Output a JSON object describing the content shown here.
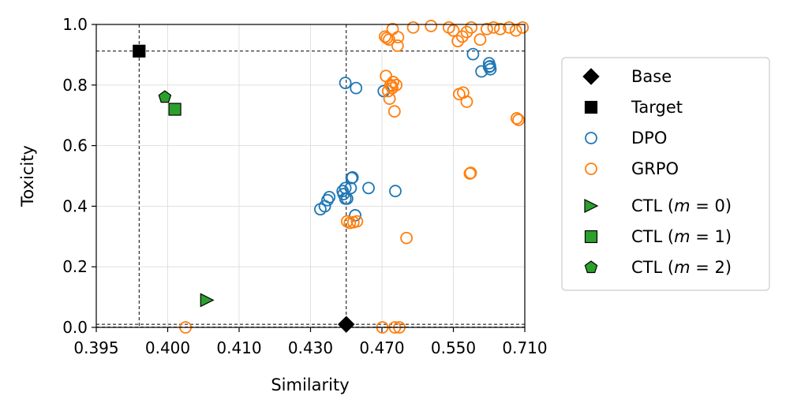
{
  "chart_data": {
    "type": "scatter",
    "xlabel": "Similarity",
    "ylabel": "Toxicity",
    "x_scale": "piecewise",
    "x_ticks": [
      0.395,
      0.4,
      0.41,
      0.43,
      0.47,
      0.55,
      0.71
    ],
    "x_tick_labels": [
      "0.395",
      "0.400",
      "0.410",
      "0.430",
      "0.470",
      "0.550",
      "0.710"
    ],
    "xlim": [
      0.395,
      0.71
    ],
    "ylim": [
      0.0,
      1.0
    ],
    "y_ticks": [
      0.0,
      0.2,
      0.4,
      0.6,
      0.8,
      1.0
    ],
    "y_tick_labels": [
      "0.0",
      "0.2",
      "0.4",
      "0.6",
      "0.8",
      "1.0"
    ],
    "grid": true,
    "legend_position": "right",
    "reference_lines": {
      "vertical": [
        0.398,
        0.45
      ],
      "horizontal": [
        0.912,
        0.01,
        0.001
      ]
    },
    "series": [
      {
        "name": "Base",
        "marker": "diamond",
        "color": "#000000",
        "filled": true,
        "points": [
          [
            0.45,
            0.01
          ]
        ]
      },
      {
        "name": "Target",
        "marker": "square",
        "color": "#000000",
        "filled": true,
        "points": [
          [
            0.398,
            0.912
          ]
        ]
      },
      {
        "name": "DPO",
        "marker": "circle",
        "color": "#1f77b4",
        "filled": false,
        "points": [
          [
            0.4495,
            0.807
          ],
          [
            0.4555,
            0.79
          ],
          [
            0.472,
            0.78
          ],
          [
            0.4625,
            0.46
          ],
          [
            0.4535,
            0.495
          ],
          [
            0.453,
            0.493
          ],
          [
            0.4525,
            0.46
          ],
          [
            0.4495,
            0.46
          ],
          [
            0.4505,
            0.425
          ],
          [
            0.4495,
            0.425
          ],
          [
            0.4485,
            0.44
          ],
          [
            0.4405,
            0.43
          ],
          [
            0.4395,
            0.42
          ],
          [
            0.438,
            0.4
          ],
          [
            0.4355,
            0.39
          ],
          [
            0.448,
            0.45
          ],
          [
            0.455,
            0.37
          ],
          [
            0.485,
            0.45
          ],
          [
            0.594,
            0.902
          ],
          [
            0.613,
            0.845
          ],
          [
            0.63,
            0.872
          ],
          [
            0.632,
            0.862
          ],
          [
            0.633,
            0.852
          ],
          [
            0.63,
            0.86
          ]
        ]
      },
      {
        "name": "GRPO",
        "marker": "circle",
        "color": "#ff7f0e",
        "filled": false,
        "points": [
          [
            0.4505,
            0.35
          ],
          [
            0.452,
            0.345
          ],
          [
            0.454,
            0.347
          ],
          [
            0.456,
            0.35
          ],
          [
            0.4735,
            0.96
          ],
          [
            0.4755,
            0.955
          ],
          [
            0.478,
            0.95
          ],
          [
            0.482,
            0.985
          ],
          [
            0.4875,
            0.93
          ],
          [
            0.488,
            0.958
          ],
          [
            0.4745,
            0.83
          ],
          [
            0.477,
            0.78
          ],
          [
            0.4785,
            0.755
          ],
          [
            0.4795,
            0.8
          ],
          [
            0.4815,
            0.79
          ],
          [
            0.4825,
            0.81
          ],
          [
            0.486,
            0.8
          ],
          [
            0.484,
            0.713
          ],
          [
            0.481,
            0.797
          ],
          [
            0.505,
            0.99
          ],
          [
            0.525,
            0.995
          ],
          [
            0.545,
            0.99
          ],
          [
            0.55,
            0.98
          ],
          [
            0.56,
            0.945
          ],
          [
            0.57,
            0.96
          ],
          [
            0.58,
            0.975
          ],
          [
            0.59,
            0.99
          ],
          [
            0.61,
            0.95
          ],
          [
            0.625,
            0.985
          ],
          [
            0.64,
            0.99
          ],
          [
            0.655,
            0.985
          ],
          [
            0.675,
            0.99
          ],
          [
            0.69,
            0.98
          ],
          [
            0.705,
            0.99
          ],
          [
            0.563,
            0.77
          ],
          [
            0.58,
            0.745
          ],
          [
            0.572,
            0.775
          ],
          [
            0.587,
            0.508
          ],
          [
            0.589,
            0.51
          ],
          [
            0.692,
            0.69
          ],
          [
            0.696,
            0.685
          ],
          [
            0.4975,
            0.295
          ],
          [
            0.4025,
            0.0
          ],
          [
            0.4705,
            0.0
          ],
          [
            0.4845,
            0.0
          ],
          [
            0.4895,
            0.0
          ]
        ]
      },
      {
        "name": "CTL (m = 0)",
        "label_prefix": "CTL (",
        "label_var": "m",
        "label_eq": " = 0)",
        "marker": "triangle-right",
        "color": "#2ca02c",
        "filled": true,
        "points": [
          [
            0.4055,
            0.09
          ]
        ]
      },
      {
        "name": "CTL (m = 1)",
        "label_prefix": "CTL (",
        "label_var": "m",
        "label_eq": " = 1)",
        "marker": "square",
        "color": "#2ca02c",
        "filled": true,
        "points": [
          [
            0.401,
            0.72
          ]
        ]
      },
      {
        "name": "CTL (m = 2)",
        "label_prefix": "CTL (",
        "label_var": "m",
        "label_eq": " = 2)",
        "marker": "pentagon",
        "color": "#2ca02c",
        "filled": true,
        "points": [
          [
            0.3998,
            0.76
          ]
        ]
      }
    ]
  },
  "legend": {
    "base": "Base",
    "target": "Target",
    "dpo": "DPO",
    "grpo": "GRPO"
  }
}
